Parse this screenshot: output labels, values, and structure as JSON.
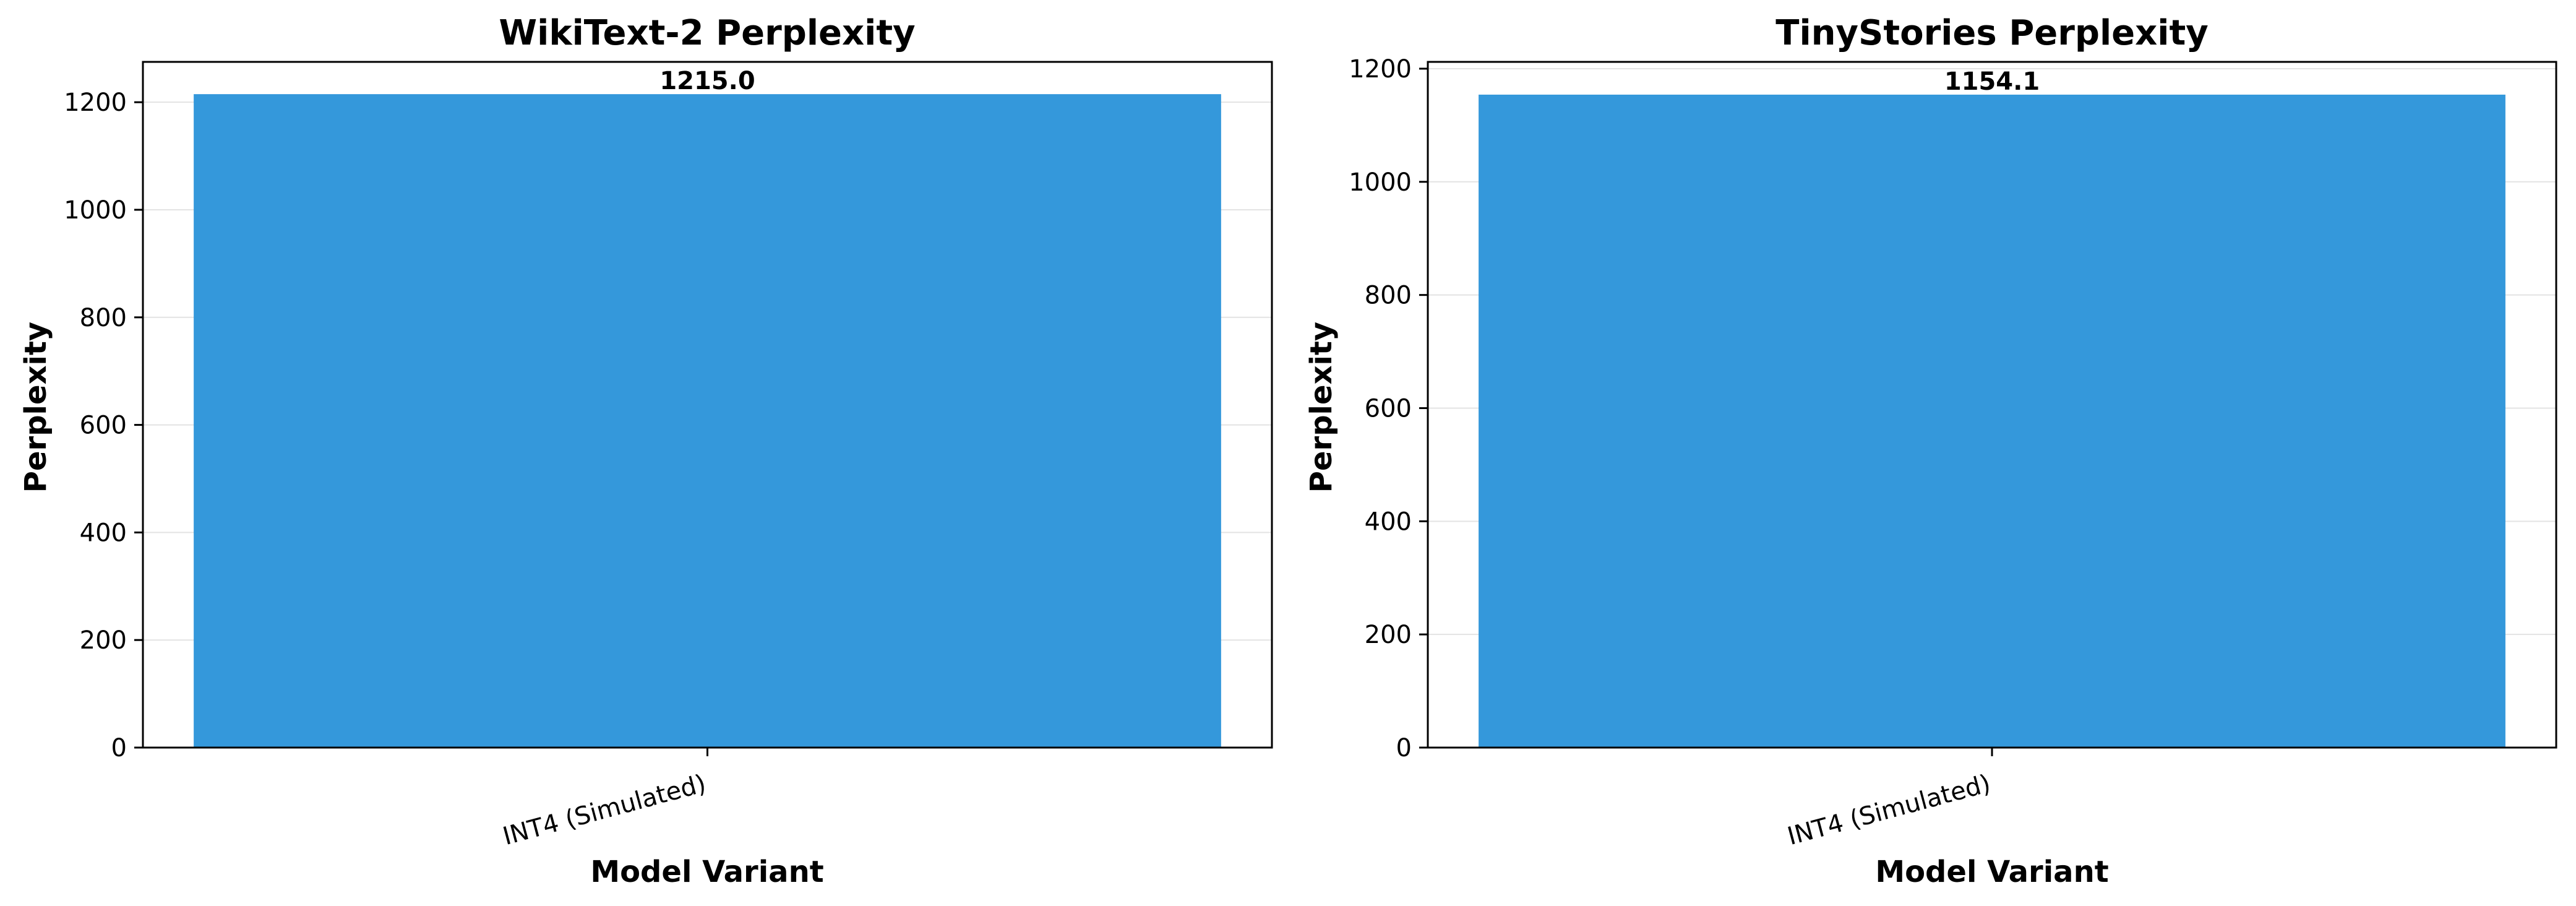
{
  "chart_data": [
    {
      "type": "bar",
      "title": "WikiText-2 Perplexity",
      "xlabel": "Model Variant",
      "ylabel": "Perplexity",
      "categories": [
        "INT4 (Simulated)"
      ],
      "values": [
        1215.0
      ],
      "value_labels": [
        "1215.0"
      ],
      "ylim": [
        0,
        1275
      ],
      "yticks": [
        0,
        200,
        400,
        600,
        800,
        1000,
        1200
      ],
      "grid": "horizontal",
      "bar_color": "#3498db"
    },
    {
      "type": "bar",
      "title": "TinyStories Perplexity",
      "xlabel": "Model Variant",
      "ylabel": "Perplexity",
      "categories": [
        "INT4 (Simulated)"
      ],
      "values": [
        1154.1
      ],
      "value_labels": [
        "1154.1"
      ],
      "ylim": [
        0,
        1212
      ],
      "yticks": [
        0,
        200,
        400,
        600,
        800,
        1000,
        1200
      ],
      "grid": "horizontal",
      "bar_color": "#3498db"
    }
  ]
}
